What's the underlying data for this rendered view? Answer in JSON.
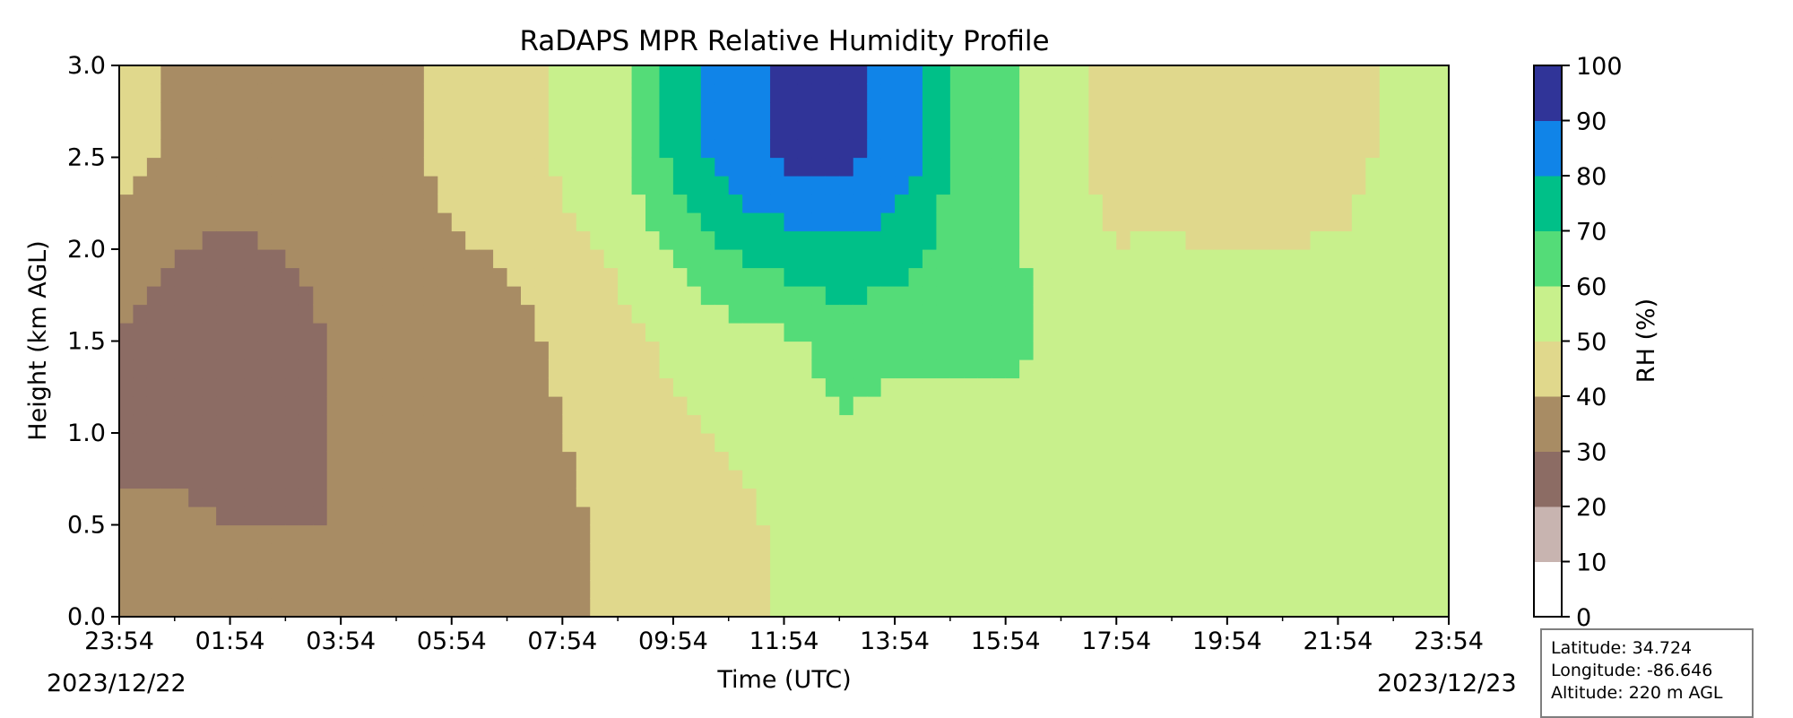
{
  "chart_data": {
    "type": "heatmap",
    "subtype": "filled-contour",
    "title": "RaDAPS MPR Relative Humidity Profile",
    "xlabel": "Time (UTC)",
    "ylabel": "Height (km AGL)",
    "x_ticks": [
      "23:54",
      "01:54",
      "03:54",
      "05:54",
      "07:54",
      "09:54",
      "11:54",
      "13:54",
      "15:54",
      "17:54",
      "19:54",
      "21:54",
      "23:54"
    ],
    "x_range_hours": [
      0,
      24
    ],
    "date_start": "2023/12/22",
    "date_end": "2023/12/23",
    "y_ticks": [
      "0.0",
      "0.5",
      "1.0",
      "1.5",
      "2.0",
      "2.5",
      "3.0"
    ],
    "ylim": [
      0,
      3
    ],
    "colorbar": {
      "label": "RH (%)",
      "levels": [
        0,
        10,
        20,
        30,
        40,
        50,
        60,
        70,
        80,
        90,
        100
      ],
      "tick_labels": [
        "0",
        "10",
        "20",
        "30",
        "40",
        "50",
        "60",
        "70",
        "80",
        "90",
        "100"
      ],
      "colors": [
        "#ffffff",
        "#c8b4b0",
        "#8c6c64",
        "#a88c64",
        "#e0d88c",
        "#c8f08c",
        "#54dc78",
        "#00c088",
        "#1084e8",
        "#303498"
      ]
    },
    "fields": {
      "time_h": [
        0,
        1,
        2,
        3,
        4,
        5,
        6,
        7,
        8,
        9,
        10,
        11,
        12,
        13,
        14,
        15,
        16,
        17,
        18,
        19,
        20,
        21,
        22,
        23,
        24
      ],
      "rh_0_5km_pct": [
        30,
        32,
        30,
        30,
        30,
        32,
        38,
        34,
        38,
        42,
        44,
        46,
        52,
        54,
        52,
        52,
        54,
        56,
        57,
        55,
        55,
        55,
        55,
        55,
        55
      ],
      "rh_1_5km_pct": [
        30,
        22,
        22,
        25,
        32,
        34,
        36,
        36,
        42,
        46,
        52,
        56,
        58,
        64,
        62,
        62,
        62,
        58,
        56,
        58,
        56,
        56,
        56,
        56,
        56
      ],
      "rh_2_5km_pct": [
        44,
        38,
        35,
        36,
        38,
        38,
        42,
        46,
        52,
        58,
        72,
        86,
        92,
        92,
        88,
        70,
        62,
        55,
        45,
        44,
        44,
        44,
        46,
        52,
        52
      ]
    }
  },
  "info": {
    "latitude": "Latitude: 34.724",
    "longitude": "Longitude: -86.646",
    "altitude": "Altitude: 220 m AGL"
  },
  "header": {
    "date_left": "2023/12/22",
    "date_right": "2023/12/23"
  }
}
